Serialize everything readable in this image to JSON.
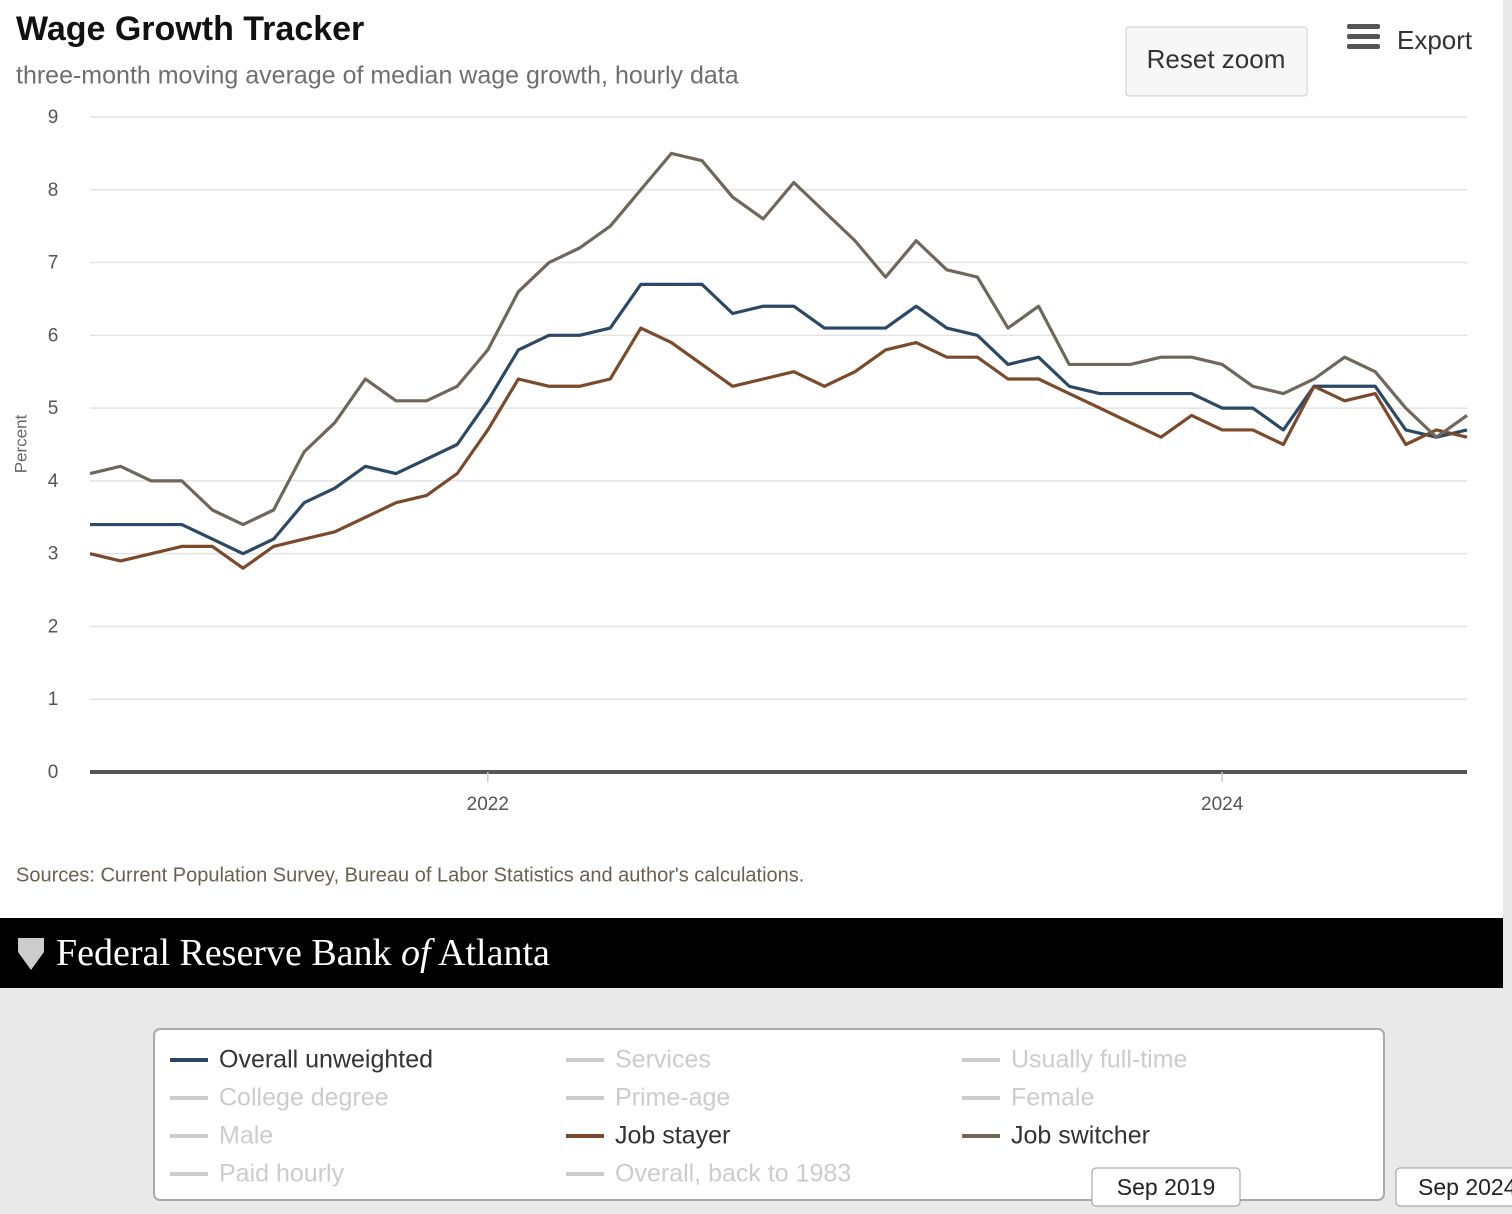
{
  "chart_data": {
    "type": "line",
    "title": "Wage Growth Tracker",
    "subtitle": "three-month moving average of median wage growth, hourly data",
    "y_label": "Percent",
    "source": "Sources: Current Population Survey, Bureau of Labor Statistics and author's calculations.",
    "categories": [
      null,
      null,
      null,
      null,
      null,
      null,
      null,
      null,
      null,
      null,
      null,
      null,
      null,
      "2022",
      null,
      null,
      null,
      null,
      null,
      null,
      null,
      null,
      null,
      null,
      null,
      null,
      null,
      null,
      null,
      null,
      null,
      null,
      null,
      null,
      null,
      null,
      null,
      "2024",
      null,
      null,
      null,
      null,
      null,
      null,
      null,
      null
    ],
    "ylim": [
      0,
      9
    ],
    "yticks": [
      0,
      1,
      2,
      3,
      4,
      5,
      6,
      7,
      8,
      9
    ],
    "grid": true,
    "series": [
      {
        "name": "Overall unweighted",
        "color": "#2b4865",
        "visible": true,
        "values": [
          3.4,
          3.4,
          3.4,
          3.4,
          3.2,
          3.0,
          3.2,
          3.7,
          3.9,
          4.2,
          4.1,
          4.3,
          4.5,
          5.1,
          5.8,
          6.0,
          6.0,
          6.1,
          6.7,
          6.7,
          6.7,
          6.3,
          6.4,
          6.4,
          6.1,
          6.1,
          6.1,
          6.4,
          6.1,
          6.0,
          5.6,
          5.7,
          5.3,
          5.2,
          5.2,
          5.2,
          5.2,
          5.0,
          5.0,
          4.7,
          5.3,
          5.3,
          5.3,
          4.7,
          4.6,
          4.7
        ]
      },
      {
        "name": "Services",
        "color": "#cccccc",
        "visible": false
      },
      {
        "name": "Usually full-time",
        "color": "#cccccc",
        "visible": false
      },
      {
        "name": "College degree",
        "color": "#cccccc",
        "visible": false
      },
      {
        "name": "Prime-age",
        "color": "#cccccc",
        "visible": false
      },
      {
        "name": "Female",
        "color": "#cccccc",
        "visible": false
      },
      {
        "name": "Male",
        "color": "#cccccc",
        "visible": false
      },
      {
        "name": "Job stayer",
        "color": "#7b4a2a",
        "visible": true,
        "values": [
          3.0,
          2.9,
          3.0,
          3.1,
          3.1,
          2.8,
          3.1,
          3.2,
          3.3,
          3.5,
          3.7,
          3.8,
          4.1,
          4.7,
          5.4,
          5.3,
          5.3,
          5.4,
          6.1,
          5.9,
          5.6,
          5.3,
          5.4,
          5.5,
          5.3,
          5.5,
          5.8,
          5.9,
          5.7,
          5.7,
          5.4,
          5.4,
          5.2,
          5.0,
          4.8,
          4.6,
          4.9,
          4.7,
          4.7,
          4.5,
          5.3,
          5.1,
          5.2,
          4.5,
          4.7,
          4.6
        ]
      },
      {
        "name": "Job switcher",
        "color": "#6f675a",
        "visible": true,
        "values": [
          4.1,
          4.2,
          4.0,
          4.0,
          3.6,
          3.4,
          3.6,
          4.4,
          4.8,
          5.4,
          5.1,
          5.1,
          5.3,
          5.8,
          6.6,
          7.0,
          7.2,
          7.5,
          8.0,
          8.5,
          8.4,
          7.9,
          7.6,
          8.1,
          7.7,
          7.3,
          6.8,
          7.3,
          6.9,
          6.8,
          6.1,
          6.4,
          5.6,
          5.6,
          5.6,
          5.7,
          5.7,
          5.6,
          5.3,
          5.2,
          5.4,
          5.7,
          5.5,
          5.0,
          4.6,
          4.9
        ]
      },
      {
        "name": "Paid hourly",
        "color": "#cccccc",
        "visible": false
      },
      {
        "name": "Overall, back to 1983",
        "color": "#cccccc",
        "visible": false
      }
    ]
  },
  "ui": {
    "reset_zoom": "Reset zoom",
    "export": "Export",
    "brand": {
      "before": "Federal Reserve Bank",
      "italic": "of",
      "after": "Atlanta"
    },
    "navigator_labels": [
      "Sep 2019",
      "Sep 2024"
    ]
  }
}
